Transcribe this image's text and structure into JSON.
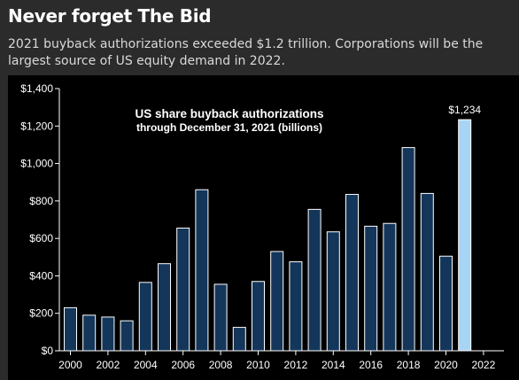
{
  "header": {
    "headline": "Never forget The Bid",
    "subhead": "2021 buyback authorizations exceeded $1.2 trillion. Corporations will be the largest source of US equity demand in 2022."
  },
  "colors": {
    "background": "#2b2b2b",
    "chart_background": "#000000",
    "bar_fill": "#14365a",
    "bar_highlight": "#a8d4f5",
    "bar_border": "#ffffff"
  },
  "chart_data": {
    "type": "bar",
    "title": "US share buyback authorizations",
    "subtitle": "through December 31, 2021 (billions)",
    "x": [
      2000,
      2001,
      2002,
      2003,
      2004,
      2005,
      2006,
      2007,
      2008,
      2009,
      2010,
      2011,
      2012,
      2013,
      2014,
      2015,
      2016,
      2017,
      2018,
      2019,
      2020,
      2021
    ],
    "values": [
      230,
      190,
      180,
      160,
      365,
      465,
      655,
      860,
      355,
      125,
      370,
      530,
      475,
      755,
      635,
      835,
      665,
      680,
      1085,
      840,
      505,
      1234
    ],
    "highlight_index": 21,
    "data_labels": [
      {
        "index": 21,
        "text": "$1,234"
      }
    ],
    "xlim": [
      1999.5,
      2022
    ],
    "x_ticks": [
      "2000",
      "2002",
      "2004",
      "2006",
      "2008",
      "2010",
      "2012",
      "2014",
      "2016",
      "2018",
      "2020",
      "2022"
    ],
    "ylim": [
      0,
      1400
    ],
    "y_ticks": [
      "$0",
      "$200",
      "$400",
      "$600",
      "$800",
      "$1,000",
      "$1,200",
      "$1,400"
    ],
    "xlabel": "",
    "ylabel": "",
    "grid": false,
    "legend": "none"
  }
}
